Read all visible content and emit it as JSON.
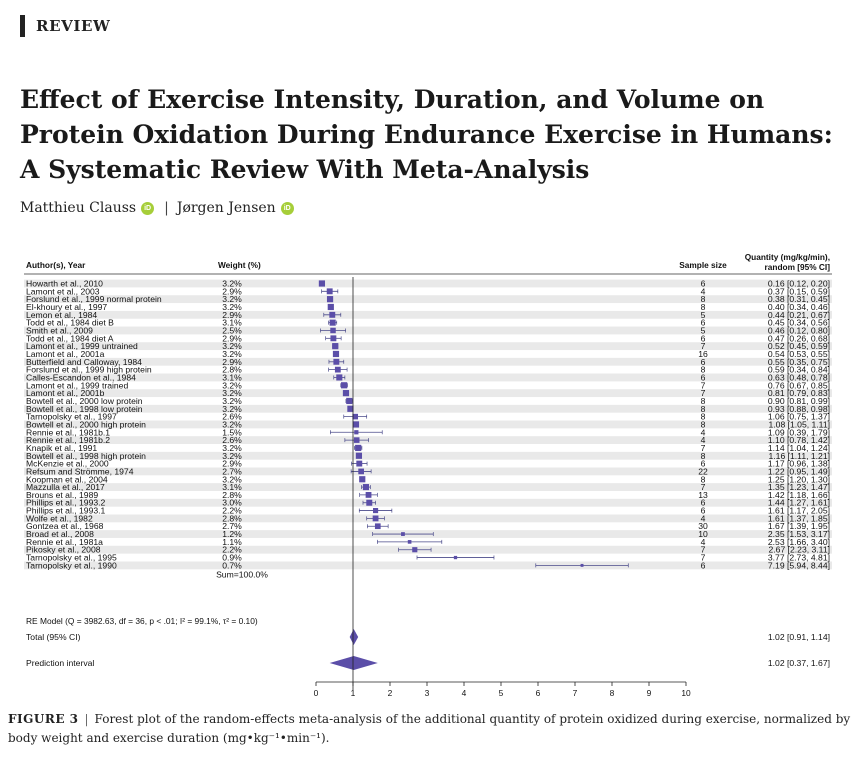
{
  "section_label": "REVIEW",
  "title_lines": [
    "Effect of Exercise Intensity, Duration, and Volume on",
    "Protein Oxidation During Endurance Exercise in Humans:",
    "A Systematic Review With Meta-Analysis"
  ],
  "authors": [
    {
      "name": "Matthieu Clauss",
      "orcid_icon": "orcid-icon"
    },
    {
      "name": "Jørgen Jensen",
      "orcid_icon": "orcid-icon"
    }
  ],
  "orcid_glyph": "iD",
  "author_separator": "|",
  "colors": {
    "marker": "#5b4ea8",
    "row_stripe": "#e9e9e9",
    "ci": "#4a4a8a"
  },
  "chart_data": {
    "type": "forest",
    "headers": {
      "author": "Author(s), Year",
      "weight": "Weight (%)",
      "sample": "Sample size",
      "quantity_line1": "Quantity (mg/kg/min),",
      "quantity_line2": "random [95% CI]"
    },
    "xlim": [
      0,
      10
    ],
    "x_ticks": [
      "0",
      "1",
      "2",
      "3",
      "4",
      "5",
      "6",
      "7",
      "8",
      "9",
      "10"
    ],
    "reference_line": 1,
    "studies": [
      {
        "name": "Howarth et al., 2010",
        "weight": "3.2%",
        "n": "6",
        "est": 0.16,
        "lo": 0.12,
        "hi": 0.2,
        "ci": "0.16 [0.12, 0.20]"
      },
      {
        "name": "Lamont et al., 2003",
        "weight": "2.9%",
        "n": "4",
        "est": 0.37,
        "lo": 0.15,
        "hi": 0.59,
        "ci": "0.37 [0.15, 0.59]"
      },
      {
        "name": "Forslund et al., 1999 normal protein",
        "weight": "3.2%",
        "n": "8",
        "est": 0.38,
        "lo": 0.31,
        "hi": 0.45,
        "ci": "0.38 [0.31, 0.45]"
      },
      {
        "name": "El-khoury et al., 1997",
        "weight": "3.2%",
        "n": "8",
        "est": 0.4,
        "lo": 0.34,
        "hi": 0.46,
        "ci": "0.40 [0.34, 0.46]"
      },
      {
        "name": "Lemon et al., 1984",
        "weight": "2.9%",
        "n": "5",
        "est": 0.44,
        "lo": 0.21,
        "hi": 0.67,
        "ci": "0.44 [0.21, 0.67]"
      },
      {
        "name": "Todd et al., 1984 diet B",
        "weight": "3.1%",
        "n": "6",
        "est": 0.45,
        "lo": 0.34,
        "hi": 0.56,
        "ci": "0.45 [0.34, 0.56]"
      },
      {
        "name": "Smith et al., 2009",
        "weight": "2.5%",
        "n": "5",
        "est": 0.46,
        "lo": 0.12,
        "hi": 0.8,
        "ci": "0.46 [0.12, 0.80]"
      },
      {
        "name": "Todd et al., 1984 diet A",
        "weight": "2.9%",
        "n": "6",
        "est": 0.47,
        "lo": 0.26,
        "hi": 0.68,
        "ci": "0.47 [0.26, 0.68]"
      },
      {
        "name": "Lamont et al., 1999 untrained",
        "weight": "3.2%",
        "n": "7",
        "est": 0.52,
        "lo": 0.45,
        "hi": 0.59,
        "ci": "0.52 [0.45, 0.59]"
      },
      {
        "name": "Lamont et al., 2001a",
        "weight": "3.2%",
        "n": "16",
        "est": 0.54,
        "lo": 0.53,
        "hi": 0.55,
        "ci": "0.54 [0.53, 0.55]"
      },
      {
        "name": "Butterfield and Calloway, 1984",
        "weight": "2.9%",
        "n": "6",
        "est": 0.55,
        "lo": 0.35,
        "hi": 0.75,
        "ci": "0.55 [0.35, 0.75]"
      },
      {
        "name": "Forslund et al., 1999 high protein",
        "weight": "2.8%",
        "n": "8",
        "est": 0.59,
        "lo": 0.34,
        "hi": 0.84,
        "ci": "0.59 [0.34, 0.84]"
      },
      {
        "name": "Calles-Escandon et al., 1984",
        "weight": "3.1%",
        "n": "6",
        "est": 0.63,
        "lo": 0.48,
        "hi": 0.78,
        "ci": "0.63 [0.48, 0.78]"
      },
      {
        "name": "Lamont et al., 1999 trained",
        "weight": "3.2%",
        "n": "7",
        "est": 0.76,
        "lo": 0.67,
        "hi": 0.85,
        "ci": "0.76 [0.67, 0.85]"
      },
      {
        "name": "Lamont et al., 2001b",
        "weight": "3.2%",
        "n": "7",
        "est": 0.81,
        "lo": 0.79,
        "hi": 0.83,
        "ci": "0.81 [0.79, 0.83]"
      },
      {
        "name": "Bowtell et al., 2000 low protein",
        "weight": "3.2%",
        "n": "8",
        "est": 0.9,
        "lo": 0.81,
        "hi": 0.99,
        "ci": "0.90 [0.81, 0.99]"
      },
      {
        "name": "Bowtell et al., 1998 low protein",
        "weight": "3.2%",
        "n": "8",
        "est": 0.93,
        "lo": 0.88,
        "hi": 0.98,
        "ci": "0.93 [0.88, 0.98]"
      },
      {
        "name": "Tarnopolsky et al., 1997",
        "weight": "2.6%",
        "n": "8",
        "est": 1.06,
        "lo": 0.75,
        "hi": 1.37,
        "ci": "1.06 [0.75, 1.37]"
      },
      {
        "name": "Bowtell et al., 2000 high protein",
        "weight": "3.2%",
        "n": "8",
        "est": 1.08,
        "lo": 1.05,
        "hi": 1.11,
        "ci": "1.08 [1.05, 1.11]"
      },
      {
        "name": "Rennie et al., 1981b.1",
        "weight": "1.5%",
        "n": "4",
        "est": 1.09,
        "lo": 0.39,
        "hi": 1.79,
        "ci": "1.09 [0.39, 1.79]"
      },
      {
        "name": "Rennie et al., 1981b.2",
        "weight": "2.6%",
        "n": "4",
        "est": 1.1,
        "lo": 0.78,
        "hi": 1.42,
        "ci": "1.10 [0.78, 1.42]"
      },
      {
        "name": "Knapik et al., 1991",
        "weight": "3.2%",
        "n": "7",
        "est": 1.14,
        "lo": 1.04,
        "hi": 1.24,
        "ci": "1.14 [1.04, 1.24]"
      },
      {
        "name": "Bowtell et al., 1998 high protein",
        "weight": "3.2%",
        "n": "8",
        "est": 1.16,
        "lo": 1.11,
        "hi": 1.21,
        "ci": "1.16 [1.11, 1.21]"
      },
      {
        "name": "McKenzie et al., 2000",
        "weight": "2.9%",
        "n": "6",
        "est": 1.17,
        "lo": 0.96,
        "hi": 1.38,
        "ci": "1.17 [0.96, 1.38]"
      },
      {
        "name": "Refsum and Strömme, 1974",
        "weight": "2.7%",
        "n": "22",
        "est": 1.22,
        "lo": 0.95,
        "hi": 1.49,
        "ci": "1.22 [0.95, 1.49]"
      },
      {
        "name": "Koopman et al., 2004",
        "weight": "3.2%",
        "n": "8",
        "est": 1.25,
        "lo": 1.2,
        "hi": 1.3,
        "ci": "1.25 [1.20, 1.30]"
      },
      {
        "name": "Mazzulla et al., 2017",
        "weight": "3.1%",
        "n": "7",
        "est": 1.35,
        "lo": 1.23,
        "hi": 1.47,
        "ci": "1.35 [1.23, 1.47]"
      },
      {
        "name": "Brouns et al., 1989",
        "weight": "2.8%",
        "n": "13",
        "est": 1.42,
        "lo": 1.18,
        "hi": 1.66,
        "ci": "1.42 [1.18, 1.66]"
      },
      {
        "name": "Phillips et al., 1993.2",
        "weight": "3.0%",
        "n": "6",
        "est": 1.44,
        "lo": 1.27,
        "hi": 1.61,
        "ci": "1.44 [1.27, 1.61]"
      },
      {
        "name": "Phillips et al., 1993.1",
        "weight": "2.2%",
        "n": "6",
        "est": 1.61,
        "lo": 1.17,
        "hi": 2.05,
        "ci": "1.61 [1.17, 2.05]"
      },
      {
        "name": "Wolfe et al., 1982",
        "weight": "2.8%",
        "n": "4",
        "est": 1.61,
        "lo": 1.37,
        "hi": 1.85,
        "ci": "1.61 [1.37, 1.85]"
      },
      {
        "name": "Gontzea et al., 1968",
        "weight": "2.7%",
        "n": "30",
        "est": 1.67,
        "lo": 1.39,
        "hi": 1.95,
        "ci": "1.67 [1.39, 1.95]"
      },
      {
        "name": "Broad et al., 2008",
        "weight": "1.2%",
        "n": "10",
        "est": 2.35,
        "lo": 1.53,
        "hi": 3.17,
        "ci": "2.35 [1.53, 3.17]"
      },
      {
        "name": "Rennie et al., 1981a",
        "weight": "1.1%",
        "n": "4",
        "est": 2.53,
        "lo": 1.66,
        "hi": 3.4,
        "ci": "2.53 [1.66, 3.40]"
      },
      {
        "name": "Pikosky et al., 2008",
        "weight": "2.2%",
        "n": "7",
        "est": 2.67,
        "lo": 2.23,
        "hi": 3.11,
        "ci": "2.67 [2.23, 3.11]"
      },
      {
        "name": "Tarnopolsky et al., 1995",
        "weight": "0.9%",
        "n": "7",
        "est": 3.77,
        "lo": 2.73,
        "hi": 4.81,
        "ci": "3.77 [2.73, 4.81]"
      },
      {
        "name": "Tarnopolsky et al., 1990",
        "weight": "0.7%",
        "n": "6",
        "est": 7.19,
        "lo": 5.94,
        "hi": 8.44,
        "ci": "7.19 [5.94, 8.44]"
      }
    ],
    "sum_weight": "Sum=100.0%",
    "model_text": "RE Model (Q = 3982.63, df = 36, p < .01; I² = 99.1%, τ² = 0.10)",
    "total": {
      "label": "Total (95% CI)",
      "est": 1.02,
      "lo": 0.91,
      "hi": 1.14,
      "ci": "1.02 [0.91, 1.14]"
    },
    "prediction": {
      "label": "Prediction interval",
      "est": 1.02,
      "lo": 0.37,
      "hi": 1.67,
      "ci": "1.02 [0.37, 1.67]"
    }
  },
  "caption": {
    "figure": "FIGURE 3",
    "separator": "|",
    "text": "Forest plot of the random-effects meta-analysis of the additional quantity of protein oxidized during exercise, normalized by body weight and exercise duration (mg•kg⁻¹•min⁻¹)."
  }
}
